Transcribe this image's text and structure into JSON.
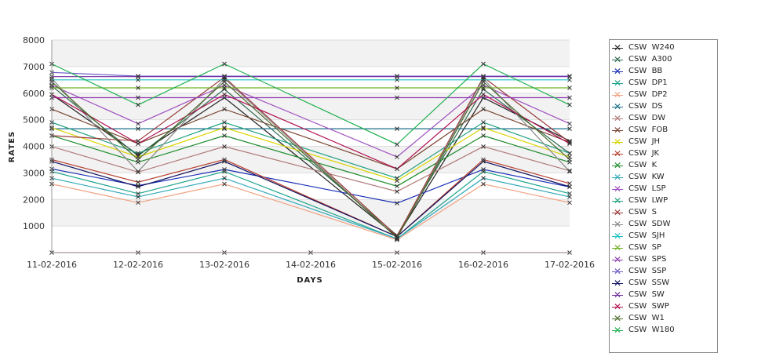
{
  "chart_data": {
    "type": "line",
    "title": "",
    "xlabel": "DAYS",
    "ylabel": "RATES",
    "categories": [
      "11-02-2016",
      "12-02-2016",
      "13-02-2016",
      "14-02-2016",
      "15-02-2016",
      "16-02-2016",
      "17-02-2016"
    ],
    "ylim": [
      0,
      8000
    ],
    "yticks": [
      1000,
      2000,
      3000,
      4000,
      5000,
      6000,
      7000,
      8000
    ],
    "grid": true,
    "legend_position": "right",
    "marker": "x",
    "series": [
      {
        "name": "CSW  W240",
        "color": "#222222",
        "values": [
          5950,
          3680,
          5830,
          null,
          600,
          5830,
          4200
        ]
      },
      {
        "name": "CSW  A300",
        "color": "#2e6a4e",
        "values": [
          6270,
          3640,
          6150,
          null,
          650,
          6150,
          3730
        ]
      },
      {
        "name": "CSW  BB",
        "color": "#1a2fb5",
        "values": [
          3150,
          2520,
          3130,
          null,
          1860,
          3130,
          2470
        ]
      },
      {
        "name": "CSW  DP1",
        "color": "#1aa38a",
        "values": [
          3050,
          2220,
          3050,
          null,
          520,
          3050,
          2220
        ]
      },
      {
        "name": "CSW  DP2",
        "color": "#f0a080",
        "values": [
          2580,
          1880,
          2580,
          null,
          480,
          2580,
          1880
        ]
      },
      {
        "name": "CSW  DS",
        "color": "#1a6f8a",
        "values": [
          4660,
          4660,
          4660,
          null,
          4660,
          4660,
          4660
        ]
      },
      {
        "name": "CSW  DW",
        "color": "#b07a78",
        "values": [
          3990,
          3030,
          3990,
          null,
          2300,
          3990,
          3080
        ]
      },
      {
        "name": "CSW  FOB",
        "color": "#7a4430",
        "values": [
          5400,
          4100,
          5400,
          null,
          3150,
          5400,
          4150
        ]
      },
      {
        "name": "CSW  JH",
        "color": "#d8d400",
        "values": [
          4700,
          3600,
          4700,
          null,
          2700,
          4700,
          3600
        ]
      },
      {
        "name": "CSW  JK",
        "color": "#b84030",
        "values": [
          3500,
          2650,
          3500,
          null,
          600,
          3500,
          2600
        ]
      },
      {
        "name": "CSW  K",
        "color": "#1a8a2a",
        "values": [
          4400,
          3400,
          4400,
          null,
          2500,
          4400,
          3400
        ]
      },
      {
        "name": "CSW  KW",
        "color": "#30a8b8",
        "values": [
          2800,
          2100,
          2800,
          null,
          520,
          2800,
          2100
        ]
      },
      {
        "name": "CSW  LSP",
        "color": "#a050c0",
        "values": [
          6300,
          4850,
          6300,
          null,
          3600,
          6300,
          4850
        ]
      },
      {
        "name": "CSW  LWP",
        "color": "#20a080",
        "values": [
          4900,
          3740,
          4900,
          null,
          2800,
          4900,
          3740
        ]
      },
      {
        "name": "CSW  S",
        "color": "#9a3a3a",
        "values": [
          4400,
          4200,
          6600,
          null,
          620,
          6600,
          4150
        ]
      },
      {
        "name": "CSW  SDW",
        "color": "#888888",
        "values": [
          6550,
          3050,
          6550,
          null,
          550,
          6550,
          3050
        ]
      },
      {
        "name": "CSW  SJH",
        "color": "#20c0c0",
        "values": [
          6500,
          6500,
          6500,
          null,
          6500,
          6500,
          6500
        ]
      },
      {
        "name": "CSW  SP",
        "color": "#70b020",
        "values": [
          6200,
          6200,
          6200,
          null,
          6200,
          6200,
          6200
        ]
      },
      {
        "name": "CSW  SPS",
        "color": "#9040b0",
        "values": [
          5830,
          5830,
          5830,
          null,
          5830,
          5830,
          5830
        ]
      },
      {
        "name": "CSW  SSP",
        "color": "#6a5ac8",
        "values": [
          6780,
          6640,
          6640,
          null,
          6640,
          6640,
          6640
        ]
      },
      {
        "name": "CSW  SSW",
        "color": "#101060",
        "values": [
          3430,
          2480,
          3430,
          null,
          600,
          3430,
          2480
        ]
      },
      {
        "name": "CSW  SW",
        "color": "#7030a0",
        "values": [
          6620,
          6620,
          6620,
          null,
          6620,
          6620,
          6620
        ]
      },
      {
        "name": "CSW  SWP",
        "color": "#b01050",
        "values": [
          5950,
          4100,
          5950,
          null,
          3150,
          5950,
          4100
        ]
      },
      {
        "name": "CSW  W1",
        "color": "#4a6a2a",
        "values": [
          6430,
          3500,
          6430,
          null,
          550,
          6430,
          3500
        ]
      },
      {
        "name": "CSW  W180",
        "color": "#20b050",
        "values": [
          7100,
          5560,
          7100,
          null,
          4070,
          7100,
          5560
        ]
      },
      {
        "name": "",
        "color": "#e08080",
        "values": [
          0,
          0,
          0,
          0,
          0,
          0,
          0
        ]
      }
    ]
  },
  "legend": {
    "items": [
      {
        "label": "CSW  W240",
        "color": "#222222"
      },
      {
        "label": "CSW  A300",
        "color": "#2e6a4e"
      },
      {
        "label": "CSW  BB",
        "color": "#1a2fb5"
      },
      {
        "label": "CSW  DP1",
        "color": "#1aa38a"
      },
      {
        "label": "CSW  DP2",
        "color": "#f0a080"
      },
      {
        "label": "CSW  DS",
        "color": "#1a6f8a"
      },
      {
        "label": "CSW  DW",
        "color": "#b07a78"
      },
      {
        "label": "CSW  FOB",
        "color": "#7a4430"
      },
      {
        "label": "CSW  JH",
        "color": "#d8d400"
      },
      {
        "label": "CSW  JK",
        "color": "#b84030"
      },
      {
        "label": "CSW  K",
        "color": "#1a8a2a"
      },
      {
        "label": "CSW  KW",
        "color": "#30a8b8"
      },
      {
        "label": "CSW  LSP",
        "color": "#a050c0"
      },
      {
        "label": "CSW  LWP",
        "color": "#20a080"
      },
      {
        "label": "CSW  S",
        "color": "#9a3a3a"
      },
      {
        "label": "CSW  SDW",
        "color": "#888888"
      },
      {
        "label": "CSW  SJH",
        "color": "#20c0c0"
      },
      {
        "label": "CSW  SP",
        "color": "#70b020"
      },
      {
        "label": "CSW  SPS",
        "color": "#9040b0"
      },
      {
        "label": "CSW  SSP",
        "color": "#6a5ac8"
      },
      {
        "label": "CSW  SSW",
        "color": "#101060"
      },
      {
        "label": "CSW  SW",
        "color": "#7030a0"
      },
      {
        "label": "CSW  SWP",
        "color": "#b01050"
      },
      {
        "label": "CSW  W1",
        "color": "#4a6a2a"
      },
      {
        "label": "CSW  W180",
        "color": "#20b050"
      }
    ]
  },
  "colors": {
    "band_light": "#f2f2f2",
    "band_white": "#ffffff",
    "gridline": "#dddddd",
    "axis": "#999999"
  }
}
